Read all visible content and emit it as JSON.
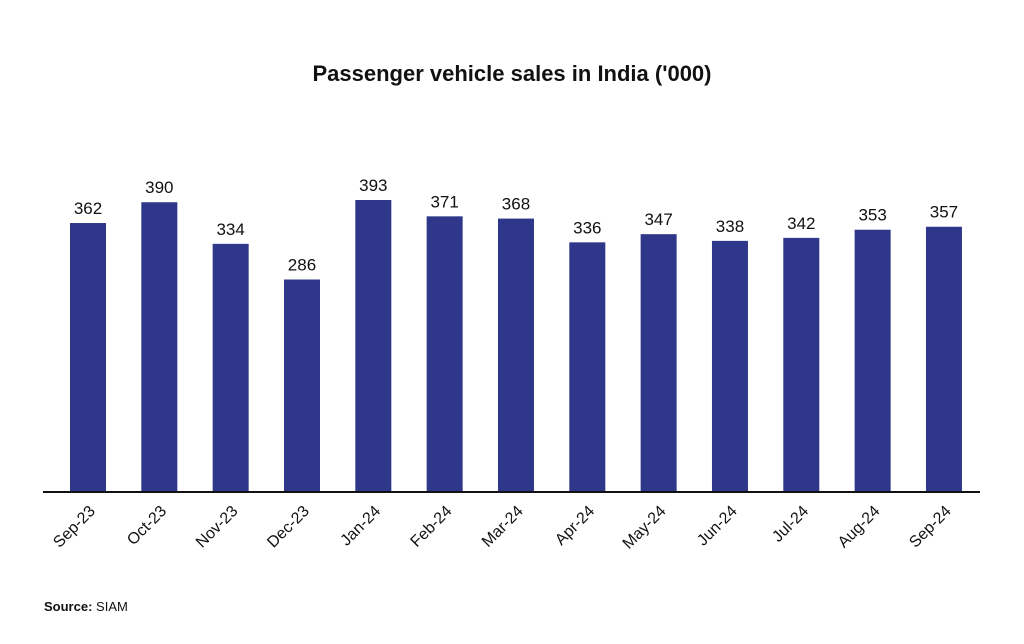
{
  "chart_data": {
    "type": "bar",
    "title": "Passenger vehicle sales in India ('000)",
    "xlabel": "",
    "ylabel": "",
    "categories": [
      "Sep-23",
      "Oct-23",
      "Nov-23",
      "Dec-23",
      "Jan-24",
      "Feb-24",
      "Mar-24",
      "Apr-24",
      "May-24",
      "Jun-24",
      "Jul-24",
      "Aug-24",
      "Sep-24"
    ],
    "values": [
      362,
      390,
      334,
      286,
      393,
      371,
      368,
      336,
      347,
      338,
      342,
      353,
      357
    ],
    "ylim": [
      0,
      393
    ],
    "grid": false,
    "legend": "none",
    "bar_color": "#2e3789",
    "data_labels": true
  },
  "source": {
    "label": "Source:",
    "value": "SIAM"
  }
}
